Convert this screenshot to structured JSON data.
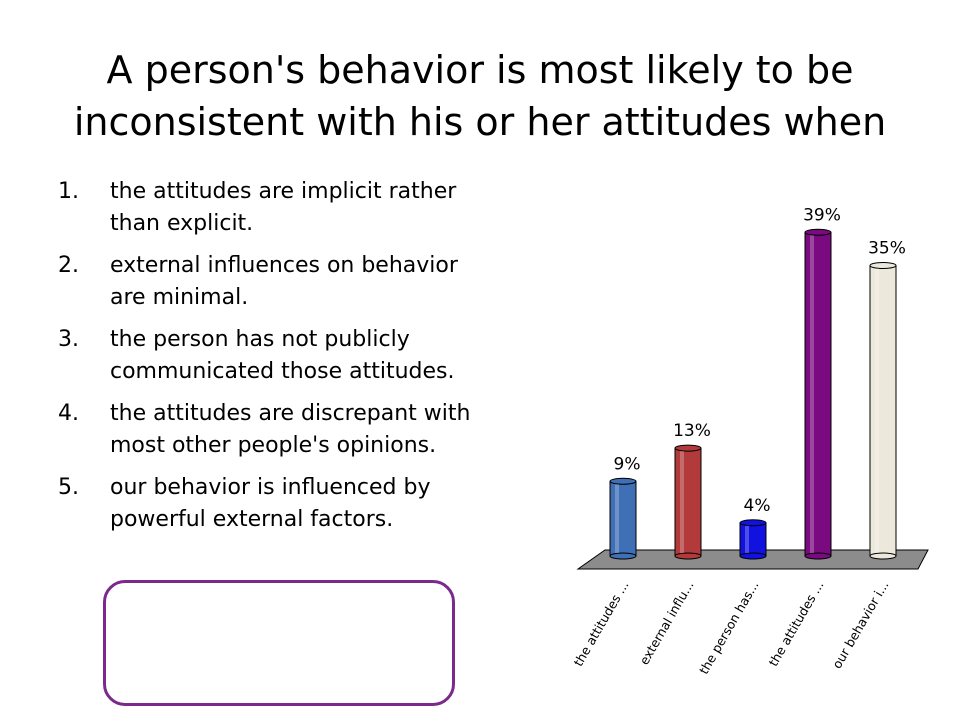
{
  "slide": {
    "title": "A person's behavior is most likely to be inconsistent with his or her attitudes when",
    "answers": [
      {
        "num": "1.",
        "text": "the attitudes are implicit rather than explicit."
      },
      {
        "num": "2.",
        "text": "external influences on behavior are minimal."
      },
      {
        "num": "3.",
        "text": "the person has not publicly communicated those attitudes."
      },
      {
        "num": "4.",
        "text": "the attitudes are discrepant with most other people's opinions."
      },
      {
        "num": "5.",
        "text": "our behavior is influenced by powerful external factors."
      }
    ],
    "highlighted_answer": 5,
    "highlight_color": "#7b2a8c"
  },
  "chart_data": {
    "type": "bar",
    "categories": [
      "the attitudes ...",
      "external influ...",
      "the person has...",
      "the attitudes ...",
      "our behavior i..."
    ],
    "values": [
      9,
      13,
      4,
      39,
      35
    ],
    "data_labels": [
      "9%",
      "13%",
      "4%",
      "39%",
      "35%"
    ],
    "colors": [
      "#3f6fb5",
      "#b23a3a",
      "#1212e0",
      "#7a0a80",
      "#ece8dc"
    ],
    "floor_color": "#8c8c8c",
    "ylim": [
      0,
      40
    ],
    "grid": false,
    "legend": false,
    "style": "3d-cylinder"
  }
}
